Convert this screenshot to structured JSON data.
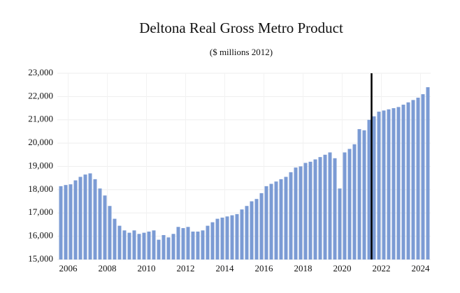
{
  "chart_data": {
    "type": "bar",
    "title": "Deltona Real Gross Metro Product",
    "subtitle": "($ millions 2012)",
    "categories": [
      null,
      "2006",
      null,
      null,
      null,
      null,
      null,
      null,
      null,
      "2008",
      null,
      null,
      null,
      null,
      null,
      null,
      null,
      "2010",
      null,
      null,
      null,
      null,
      null,
      null,
      null,
      "2012",
      null,
      null,
      null,
      null,
      null,
      null,
      null,
      "2014",
      null,
      null,
      null,
      null,
      null,
      null,
      null,
      "2016",
      null,
      null,
      null,
      null,
      null,
      null,
      null,
      "2018",
      null,
      null,
      null,
      null,
      null,
      null,
      null,
      "2020",
      null,
      null,
      null,
      null,
      null,
      null,
      null,
      "2022",
      null,
      null,
      null,
      null,
      null,
      null,
      null,
      "2024",
      null,
      null
    ],
    "values": [
      18150,
      18200,
      18230,
      18400,
      18550,
      18650,
      18700,
      18450,
      18050,
      17750,
      17300,
      16750,
      16450,
      16250,
      16150,
      16250,
      16100,
      16150,
      16200,
      16250,
      15850,
      16050,
      15950,
      16100,
      16400,
      16350,
      16400,
      16200,
      16200,
      16250,
      16450,
      16600,
      16750,
      16800,
      16850,
      16900,
      16950,
      17150,
      17300,
      17500,
      17600,
      17850,
      18150,
      18250,
      18350,
      18450,
      18550,
      18750,
      18950,
      19000,
      19150,
      19200,
      19300,
      19400,
      19500,
      19600,
      19350,
      18050,
      19600,
      19750,
      19950,
      20600,
      20550,
      21000,
      21150,
      21350,
      21400,
      21450,
      21500,
      21550,
      21650,
      21750,
      21850,
      21950,
      22100,
      22400
    ],
    "color": "#7b9bd4",
    "ylim": [
      15000,
      23000
    ],
    "yticks": [
      {
        "value": 15000,
        "label": "15,000"
      },
      {
        "value": 16000,
        "label": "16,000"
      },
      {
        "value": 17000,
        "label": "17,000"
      },
      {
        "value": 18000,
        "label": "18,000"
      },
      {
        "value": 19000,
        "label": "19,000"
      },
      {
        "value": 20000,
        "label": "20,000"
      },
      {
        "value": 21000,
        "label": "21,000"
      },
      {
        "value": 22000,
        "label": "22,000"
      },
      {
        "value": 23000,
        "label": "23,000"
      }
    ],
    "vline": 63.5,
    "vline_color": "#000000",
    "grid": true
  }
}
